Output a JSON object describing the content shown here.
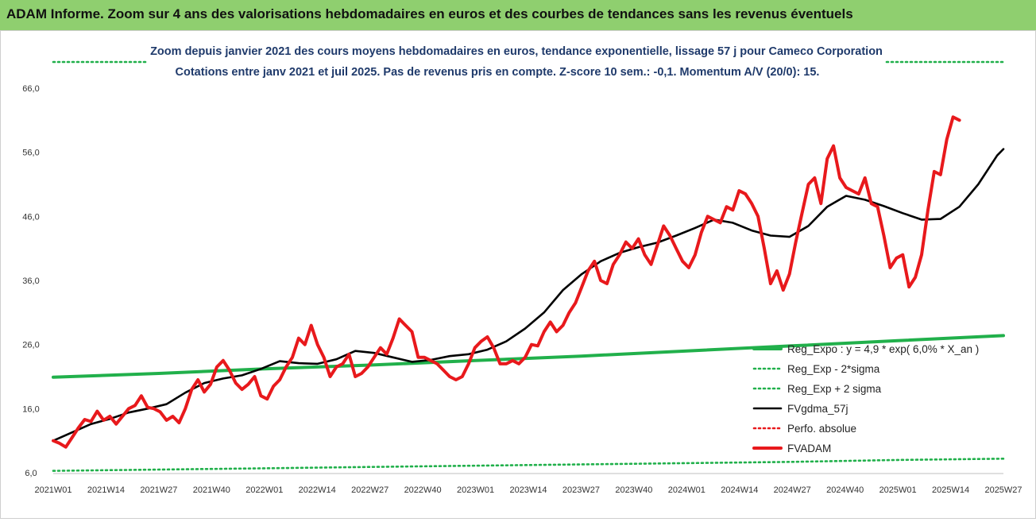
{
  "banner": {
    "title": "ADAM Informe. Zoom sur 4 ans des valorisations hebdomadaires en euros et des courbes de tendances sans les revenus éventuels"
  },
  "colors": {
    "banner": "#8fcf6f",
    "fvadam": "#e8191c",
    "fvgdma": "#000000",
    "reg": "#21b04b",
    "perfo": "#e8191c"
  },
  "chart_data": {
    "type": "line",
    "title": "Zoom depuis janvier 2021 des cours moyens hebdomadaires en euros, tendance exponentielle, lissage 57 j pour Cameco Corporation",
    "subtitle": "Cotations entre janv 2021 et juil 2025. Pas de revenus pris en compte. Z-score 10 sem.: -0,1. Momentum A/V (20/0): 15.",
    "xlabel": "",
    "ylabel": "",
    "ylim": [
      6,
      66
    ],
    "y_ticks": [
      "6,0",
      "16,0",
      "26,0",
      "36,0",
      "46,0",
      "56,0",
      "66,0"
    ],
    "x_ticks": [
      "2021W01",
      "2021W14",
      "2021W27",
      "2021W40",
      "2022W01",
      "2022W14",
      "2022W27",
      "2022W40",
      "2023W01",
      "2023W14",
      "2023W27",
      "2023W40",
      "2024W01",
      "2024W14",
      "2024W27",
      "2024W40",
      "2025W01",
      "2025W14",
      "2025W27"
    ],
    "grid": false,
    "legend_position": "bottom-right",
    "series": [
      {
        "name": "Reg_Expo : y = 4,9 * exp( 6,0% * X_an )",
        "style": "solid-thick",
        "color": "#21b04b",
        "points": [
          [
            0,
            20.9
          ],
          [
            26,
            21.5
          ],
          [
            52,
            22.2
          ],
          [
            78,
            22.8
          ],
          [
            104,
            23.5
          ],
          [
            130,
            24.2
          ],
          [
            156,
            25.0
          ],
          [
            182,
            25.8
          ],
          [
            208,
            26.6
          ],
          [
            234,
            27.4
          ]
        ]
      },
      {
        "name": "Reg_Exp - 2*sigma",
        "style": "dotted",
        "color": "#21b04b",
        "points": [
          [
            0,
            6.3
          ],
          [
            26,
            6.5
          ],
          [
            52,
            6.7
          ],
          [
            78,
            6.9
          ],
          [
            104,
            7.1
          ],
          [
            130,
            7.3
          ],
          [
            156,
            7.5
          ],
          [
            182,
            7.7
          ],
          [
            208,
            8.0
          ],
          [
            234,
            8.2
          ]
        ]
      },
      {
        "name": "Reg_Exp + 2 sigma",
        "style": "dotted",
        "color": "#21b04b",
        "points": [
          [
            0,
            70
          ],
          [
            234,
            70
          ]
        ]
      },
      {
        "name": "FVgdma_57j",
        "style": "solid",
        "color": "#000000",
        "points": [
          [
            0,
            11.0
          ],
          [
            6,
            12.3
          ],
          [
            12,
            13.6
          ],
          [
            18,
            14.4
          ],
          [
            24,
            15.4
          ],
          [
            30,
            16.0
          ],
          [
            36,
            16.7
          ],
          [
            42,
            18.5
          ],
          [
            48,
            20.0
          ],
          [
            54,
            20.7
          ],
          [
            60,
            21.2
          ],
          [
            66,
            22.2
          ],
          [
            72,
            23.4
          ],
          [
            78,
            23.1
          ],
          [
            84,
            23.0
          ],
          [
            90,
            23.7
          ],
          [
            96,
            25.0
          ],
          [
            102,
            24.7
          ],
          [
            108,
            24.0
          ],
          [
            114,
            23.3
          ],
          [
            120,
            23.6
          ],
          [
            126,
            24.2
          ],
          [
            132,
            24.5
          ],
          [
            138,
            25.2
          ],
          [
            144,
            26.5
          ],
          [
            150,
            28.5
          ],
          [
            156,
            31.0
          ],
          [
            162,
            34.5
          ],
          [
            168,
            37.0
          ],
          [
            174,
            39.0
          ],
          [
            180,
            40.3
          ],
          [
            186,
            41.2
          ],
          [
            192,
            41.9
          ],
          [
            198,
            43.0
          ],
          [
            204,
            44.2
          ],
          [
            210,
            45.5
          ],
          [
            216,
            45.0
          ],
          [
            222,
            43.8
          ],
          [
            228,
            43.0
          ],
          [
            234,
            42.8
          ],
          [
            240,
            44.5
          ],
          [
            246,
            47.5
          ],
          [
            252,
            49.2
          ],
          [
            258,
            48.6
          ],
          [
            264,
            47.6
          ],
          [
            270,
            46.5
          ],
          [
            276,
            45.5
          ],
          [
            282,
            45.6
          ],
          [
            288,
            47.5
          ],
          [
            294,
            51.0
          ],
          [
            300,
            55.5
          ],
          [
            302,
            56.5
          ]
        ]
      },
      {
        "name": "Perfo. absolue",
        "style": "dotted",
        "color": "#e8191c",
        "points": []
      },
      {
        "name": "FVADAM",
        "style": "solid-thick",
        "color": "#e8191c",
        "points": [
          [
            0,
            11.0
          ],
          [
            2,
            10.6
          ],
          [
            4,
            10.0
          ],
          [
            6,
            11.5
          ],
          [
            8,
            13.0
          ],
          [
            10,
            14.3
          ],
          [
            12,
            14.0
          ],
          [
            14,
            15.6
          ],
          [
            16,
            14.2
          ],
          [
            18,
            14.8
          ],
          [
            20,
            13.6
          ],
          [
            22,
            14.8
          ],
          [
            24,
            16.0
          ],
          [
            26,
            16.5
          ],
          [
            28,
            18.0
          ],
          [
            30,
            16.2
          ],
          [
            32,
            16.0
          ],
          [
            34,
            15.5
          ],
          [
            36,
            14.2
          ],
          [
            38,
            14.8
          ],
          [
            40,
            13.8
          ],
          [
            42,
            16.0
          ],
          [
            44,
            19.0
          ],
          [
            46,
            20.5
          ],
          [
            48,
            18.6
          ],
          [
            50,
            19.8
          ],
          [
            52,
            22.5
          ],
          [
            54,
            23.5
          ],
          [
            56,
            22.0
          ],
          [
            58,
            20.0
          ],
          [
            60,
            19.0
          ],
          [
            62,
            19.8
          ],
          [
            64,
            21.0
          ],
          [
            66,
            18.0
          ],
          [
            68,
            17.5
          ],
          [
            70,
            19.5
          ],
          [
            72,
            20.5
          ],
          [
            74,
            22.5
          ],
          [
            76,
            24.0
          ],
          [
            78,
            27.0
          ],
          [
            80,
            26.0
          ],
          [
            82,
            29.0
          ],
          [
            84,
            26.0
          ],
          [
            86,
            24.0
          ],
          [
            88,
            21.0
          ],
          [
            90,
            22.5
          ],
          [
            92,
            23.0
          ],
          [
            94,
            24.5
          ],
          [
            96,
            21.0
          ],
          [
            98,
            21.5
          ],
          [
            100,
            22.5
          ],
          [
            102,
            24.0
          ],
          [
            104,
            25.5
          ],
          [
            106,
            24.5
          ],
          [
            108,
            27.0
          ],
          [
            110,
            30.0
          ],
          [
            112,
            29.0
          ],
          [
            114,
            28.0
          ],
          [
            116,
            24.0
          ],
          [
            118,
            24.0
          ],
          [
            120,
            23.5
          ],
          [
            122,
            23.0
          ],
          [
            124,
            22.0
          ],
          [
            126,
            21.0
          ],
          [
            128,
            20.5
          ],
          [
            130,
            21.0
          ],
          [
            132,
            23.0
          ],
          [
            134,
            25.5
          ],
          [
            136,
            26.5
          ],
          [
            138,
            27.2
          ],
          [
            140,
            25.5
          ],
          [
            142,
            23.0
          ],
          [
            144,
            23.0
          ],
          [
            146,
            23.5
          ],
          [
            148,
            23.0
          ],
          [
            150,
            24.0
          ],
          [
            152,
            26.0
          ],
          [
            154,
            25.8
          ],
          [
            156,
            28.0
          ],
          [
            158,
            29.5
          ],
          [
            160,
            28.0
          ],
          [
            162,
            29.0
          ],
          [
            164,
            31.0
          ],
          [
            166,
            32.5
          ],
          [
            168,
            35.0
          ],
          [
            170,
            37.5
          ],
          [
            172,
            39.0
          ],
          [
            174,
            36.0
          ],
          [
            176,
            35.5
          ],
          [
            178,
            38.5
          ],
          [
            180,
            40.0
          ],
          [
            182,
            42.0
          ],
          [
            184,
            41.0
          ],
          [
            186,
            42.5
          ],
          [
            188,
            40.0
          ],
          [
            190,
            38.5
          ],
          [
            192,
            41.5
          ],
          [
            194,
            44.5
          ],
          [
            196,
            43.0
          ],
          [
            198,
            41.0
          ],
          [
            200,
            39.0
          ],
          [
            202,
            38.0
          ],
          [
            204,
            40.0
          ],
          [
            206,
            43.5
          ],
          [
            208,
            46.0
          ],
          [
            210,
            45.5
          ],
          [
            212,
            45.0
          ],
          [
            214,
            47.5
          ],
          [
            216,
            47.0
          ],
          [
            218,
            50.0
          ],
          [
            220,
            49.5
          ],
          [
            222,
            48.0
          ],
          [
            224,
            46.0
          ],
          [
            226,
            41.0
          ],
          [
            228,
            35.5
          ],
          [
            230,
            37.5
          ],
          [
            232,
            34.5
          ],
          [
            234,
            37.0
          ],
          [
            236,
            42.0
          ],
          [
            238,
            46.5
          ],
          [
            240,
            51.0
          ],
          [
            242,
            52.0
          ],
          [
            244,
            48.0
          ],
          [
            246,
            55.0
          ],
          [
            248,
            57.0
          ],
          [
            250,
            52.0
          ],
          [
            252,
            50.5
          ],
          [
            254,
            50.0
          ],
          [
            256,
            49.5
          ],
          [
            258,
            52.0
          ],
          [
            260,
            48.0
          ],
          [
            262,
            47.5
          ],
          [
            264,
            43.0
          ],
          [
            266,
            38.0
          ],
          [
            268,
            39.5
          ],
          [
            270,
            40.0
          ],
          [
            272,
            35.0
          ],
          [
            274,
            36.5
          ],
          [
            276,
            40.0
          ],
          [
            278,
            47.0
          ],
          [
            280,
            53.0
          ],
          [
            282,
            52.5
          ],
          [
            284,
            58.0
          ],
          [
            286,
            61.5
          ],
          [
            288,
            61.0
          ]
        ]
      }
    ]
  }
}
